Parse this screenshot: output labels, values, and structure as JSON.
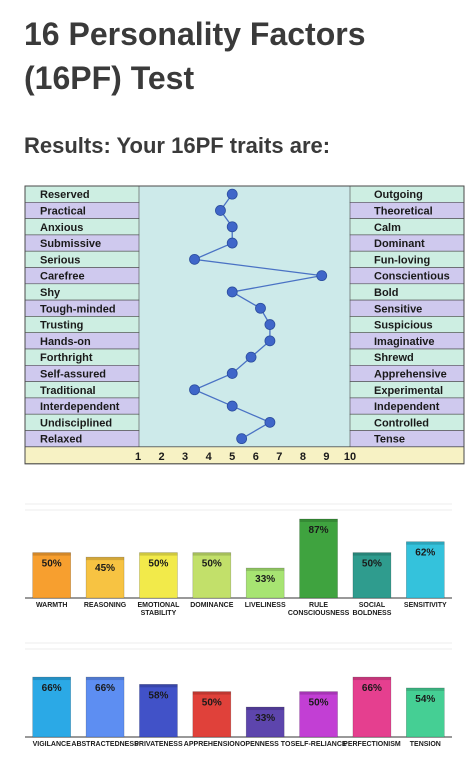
{
  "page": {
    "title": "16 Personality Factors (16PF) Test",
    "results_heading": "Results: Your 16PF traits are:"
  },
  "chart_data": [
    {
      "type": "line",
      "left_labels": [
        "Reserved",
        "Practical",
        "Anxious",
        "Submissive",
        "Serious",
        "Carefree",
        "Shy",
        "Tough-minded",
        "Trusting",
        "Hands-on",
        "Forthright",
        "Self-assured",
        "Traditional",
        "Interdependent",
        "Undisciplined",
        "Relaxed"
      ],
      "right_labels": [
        "Outgoing",
        "Theoretical",
        "Calm",
        "Dominant",
        "Fun-loving",
        "Conscientious",
        "Bold",
        "Sensitive",
        "Suspicious",
        "Imaginative",
        "Shrewd",
        "Apprehensive",
        "Experimental",
        "Independent",
        "Controlled",
        "Tense"
      ],
      "values": [
        5.0,
        4.5,
        5.0,
        5.0,
        3.4,
        8.8,
        5.0,
        6.2,
        6.6,
        6.6,
        5.8,
        5.0,
        3.4,
        5.0,
        6.6,
        5.4
      ],
      "x_ticks": [
        "1",
        "2",
        "3",
        "4",
        "5",
        "6",
        "7",
        "8",
        "9",
        "10"
      ],
      "xlim": [
        1,
        10
      ],
      "colors": {
        "plot_bg": "#cdeaea",
        "row_green": "#cdeee2",
        "row_purple": "#cfc9ee",
        "axis_bg": "#f7f2c4",
        "line": "#4a72c4",
        "marker": "#3f66c9",
        "border": "#4a4a4a"
      }
    },
    {
      "type": "bar",
      "categories": [
        "WARMTH",
        "REASONING",
        "EMOTIONAL STABILITY",
        "DOMINANCE",
        "LIVELINESS",
        "RULE CONSCIOUSNESS",
        "SOCIAL BOLDNESS",
        "SENSITIVITY"
      ],
      "values": [
        50,
        45,
        50,
        50,
        33,
        87,
        50,
        62
      ],
      "labels": [
        "50%",
        "45%",
        "50%",
        "50%",
        "33%",
        "87%",
        "50%",
        "62%"
      ],
      "colors": [
        "#f79f2f",
        "#f7c342",
        "#f2ea4a",
        "#c2e06a",
        "#a7e472",
        "#3fa33f",
        "#2f9c8e",
        "#34c2dc"
      ],
      "ylim": [
        0,
        100
      ],
      "grid": true
    },
    {
      "type": "bar",
      "categories": [
        "VIGILANCE",
        "ABSTRACTEDNESS",
        "PRIVATENESS",
        "APPREHENSION",
        "OPENNESS TO CHANGE",
        "SELF-RELIANCE",
        "PERFECTIONISM",
        "TENSION"
      ],
      "values": [
        66,
        66,
        58,
        50,
        33,
        50,
        66,
        54
      ],
      "labels": [
        "66%",
        "66%",
        "58%",
        "50%",
        "33%",
        "50%",
        "66%",
        "54%"
      ],
      "colors": [
        "#2ba9e6",
        "#5d8ef2",
        "#4152c8",
        "#e0413a",
        "#5d45ad",
        "#c23fd4",
        "#e53f8f",
        "#45cf94"
      ],
      "ylim": [
        0,
        100
      ],
      "grid": true
    }
  ]
}
